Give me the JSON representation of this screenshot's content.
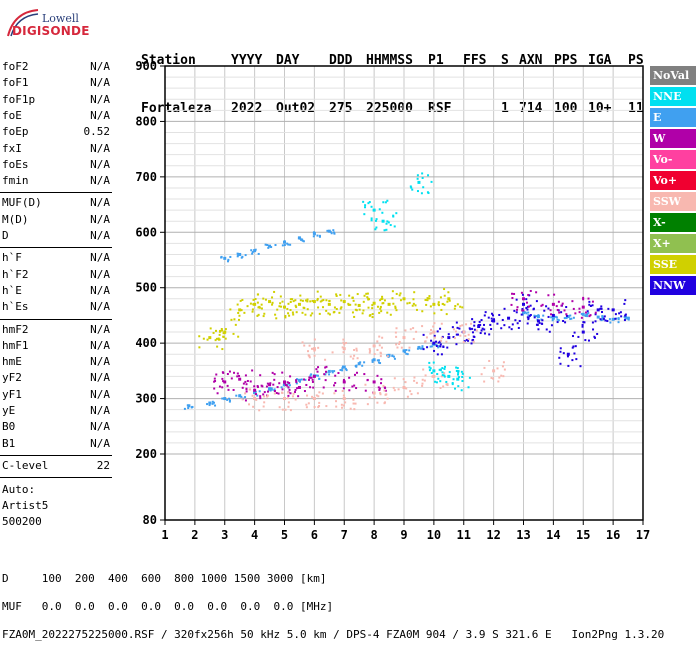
{
  "logo": {
    "line1": "Lowell",
    "line2": "DIGISONDE"
  },
  "header": {
    "row1": [
      "Station",
      "YYYY",
      "DAY",
      "DDD",
      "HHMMSS",
      "P1",
      "FFS",
      "S",
      "AXN",
      "PPS",
      "IGA",
      "PS"
    ],
    "row2": [
      "Fortaleza",
      "2022",
      "Out02",
      "275",
      "225000",
      "RSF",
      "",
      "1",
      "714",
      "100",
      "10+",
      "11"
    ]
  },
  "params": {
    "group1": [
      {
        "label": "foF2",
        "value": "N/A"
      },
      {
        "label": "foF1",
        "value": "N/A"
      },
      {
        "label": "foF1p",
        "value": "N/A"
      },
      {
        "label": "foE",
        "value": "N/A"
      },
      {
        "label": "foEp",
        "value": "0.52"
      },
      {
        "label": "fxI",
        "value": "N/A"
      },
      {
        "label": "foEs",
        "value": "N/A"
      },
      {
        "label": "fmin",
        "value": "N/A"
      }
    ],
    "group2": [
      {
        "label": "MUF(D)",
        "value": "N/A"
      },
      {
        "label": "M(D)",
        "value": "N/A"
      },
      {
        "label": "D",
        "value": "N/A"
      }
    ],
    "group3": [
      {
        "label": "h`F",
        "value": "N/A"
      },
      {
        "label": "h`F2",
        "value": "N/A"
      },
      {
        "label": "h`E",
        "value": "N/A"
      },
      {
        "label": "h`Es",
        "value": "N/A"
      }
    ],
    "group4": [
      {
        "label": "hmF2",
        "value": "N/A"
      },
      {
        "label": "hmF1",
        "value": "N/A"
      },
      {
        "label": "hmE",
        "value": "N/A"
      },
      {
        "label": "yF2",
        "value": "N/A"
      },
      {
        "label": "yF1",
        "value": "N/A"
      },
      {
        "label": "yE",
        "value": "N/A"
      },
      {
        "label": "B0",
        "value": "N/A"
      },
      {
        "label": "B1",
        "value": "N/A"
      }
    ],
    "clevel": {
      "label": "C-level",
      "value": "22"
    },
    "auto": [
      "Auto:",
      "Artist5",
      "500200"
    ]
  },
  "legend": [
    {
      "label": "NoVal",
      "color": "#808080"
    },
    {
      "label": "NNE",
      "color": "#00e0f0"
    },
    {
      "label": "E",
      "color": "#40a0f0"
    },
    {
      "label": "W",
      "color": "#b000a8"
    },
    {
      "label": "Vo-",
      "color": "#ff40a0"
    },
    {
      "label": "Vo+",
      "color": "#f00030"
    },
    {
      "label": "SSW",
      "color": "#f8b8b0"
    },
    {
      "label": "X-",
      "color": "#008000"
    },
    {
      "label": "X+",
      "color": "#90c050"
    },
    {
      "label": "SSE",
      "color": "#d0d000"
    },
    {
      "label": "NNW",
      "color": "#2000e0"
    }
  ],
  "footer": {
    "line1": "D     100  200  400  600  800 1000 1500 3000 [km]",
    "line2": "MUF   0.0  0.0  0.0  0.0  0.0  0.0  0.0  0.0 [MHz]",
    "line3": "FZA0M_2022275225000.RSF / 320fx256h 50 kHz 5.0 km / DPS-4 FZA0M 904 / 3.9 S 321.6 E   Ion2Png 1.3.20"
  },
  "chart_data": {
    "type": "scatter",
    "xlim": [
      1,
      17
    ],
    "ylim": [
      80,
      900
    ],
    "x_ticks": [
      1,
      2,
      3,
      4,
      5,
      6,
      7,
      8,
      9,
      10,
      11,
      12,
      13,
      14,
      15,
      16,
      17
    ],
    "y_ticks": [
      80,
      200,
      300,
      400,
      500,
      600,
      700,
      800,
      900
    ],
    "grid": true,
    "series": [
      {
        "name": "E",
        "color": "#40a0f0",
        "points": [
          [
            1.8,
            287
          ],
          [
            2.5,
            292
          ],
          [
            3.0,
            300
          ],
          [
            3.5,
            305
          ],
          [
            4.0,
            311
          ],
          [
            4.5,
            318
          ],
          [
            5.0,
            325
          ],
          [
            5.5,
            333
          ],
          [
            6.0,
            341
          ],
          [
            6.5,
            349
          ],
          [
            7.0,
            357
          ],
          [
            7.5,
            363
          ],
          [
            8.0,
            370
          ],
          [
            8.5,
            378
          ],
          [
            9.0,
            386
          ],
          [
            9.5,
            392
          ],
          [
            10.0,
            398
          ],
          [
            3.0,
            553
          ],
          [
            3.5,
            560
          ],
          [
            4.0,
            567
          ],
          [
            4.5,
            575
          ],
          [
            5.0,
            582
          ],
          [
            5.5,
            590
          ],
          [
            6.0,
            598
          ],
          [
            6.5,
            602
          ],
          [
            13.0,
            455
          ],
          [
            13.5,
            448
          ],
          [
            14.0,
            445
          ],
          [
            14.5,
            448
          ],
          [
            15.0,
            452
          ],
          [
            15.5,
            447
          ],
          [
            16.0,
            443
          ],
          [
            16.5,
            445
          ]
        ]
      },
      {
        "name": "NNW",
        "color": "#2000e0",
        "points": [
          [
            10.0,
            400
          ],
          [
            10.5,
            410
          ],
          [
            11.0,
            420
          ],
          [
            11.5,
            430
          ],
          [
            12.0,
            440
          ],
          [
            12.5,
            445
          ],
          [
            13.0,
            470
          ],
          [
            13.5,
            440
          ],
          [
            14.0,
            450
          ],
          [
            14.5,
            380
          ],
          [
            15.0,
            420
          ],
          [
            15.5,
            460
          ],
          [
            16.0,
            460
          ]
        ]
      },
      {
        "name": "W",
        "color": "#b000a8",
        "points": [
          [
            3.0,
            330
          ],
          [
            3.5,
            335
          ],
          [
            4.0,
            315
          ],
          [
            4.5,
            325
          ],
          [
            5.0,
            330
          ],
          [
            5.5,
            320
          ],
          [
            6.0,
            340
          ],
          [
            7.0,
            330
          ],
          [
            8.0,
            330
          ],
          [
            13.0,
            480
          ],
          [
            14.0,
            470
          ],
          [
            15.0,
            465
          ]
        ]
      },
      {
        "name": "SSE",
        "color": "#d0d000",
        "points": [
          [
            2.5,
            410
          ],
          [
            3.0,
            420
          ],
          [
            3.5,
            460
          ],
          [
            4.0,
            470
          ],
          [
            4.5,
            475
          ],
          [
            5.0,
            465
          ],
          [
            5.5,
            470
          ],
          [
            6.0,
            475
          ],
          [
            6.5,
            470
          ],
          [
            7.0,
            475
          ],
          [
            7.5,
            468
          ],
          [
            8.0,
            472
          ],
          [
            8.5,
            470
          ],
          [
            9.0,
            480
          ],
          [
            10.0,
            470
          ],
          [
            10.5,
            480
          ]
        ]
      },
      {
        "name": "SSW",
        "color": "#f8b8b0",
        "points": [
          [
            4.0,
            300
          ],
          [
            5.0,
            300
          ],
          [
            6.0,
            300
          ],
          [
            7.0,
            300
          ],
          [
            8.0,
            310
          ],
          [
            9.0,
            320
          ],
          [
            10.0,
            340
          ],
          [
            11.0,
            420
          ],
          [
            12.0,
            350
          ],
          [
            6.0,
            390
          ],
          [
            7.0,
            390
          ],
          [
            8.0,
            395
          ],
          [
            9.0,
            410
          ],
          [
            10.0,
            420
          ]
        ]
      },
      {
        "name": "NNE",
        "color": "#00e0f0",
        "points": [
          [
            10.0,
            350
          ],
          [
            10.5,
            340
          ],
          [
            10.8,
            335
          ],
          [
            8.0,
            640
          ],
          [
            8.3,
            620
          ],
          [
            9.5,
            690
          ]
        ]
      }
    ]
  }
}
